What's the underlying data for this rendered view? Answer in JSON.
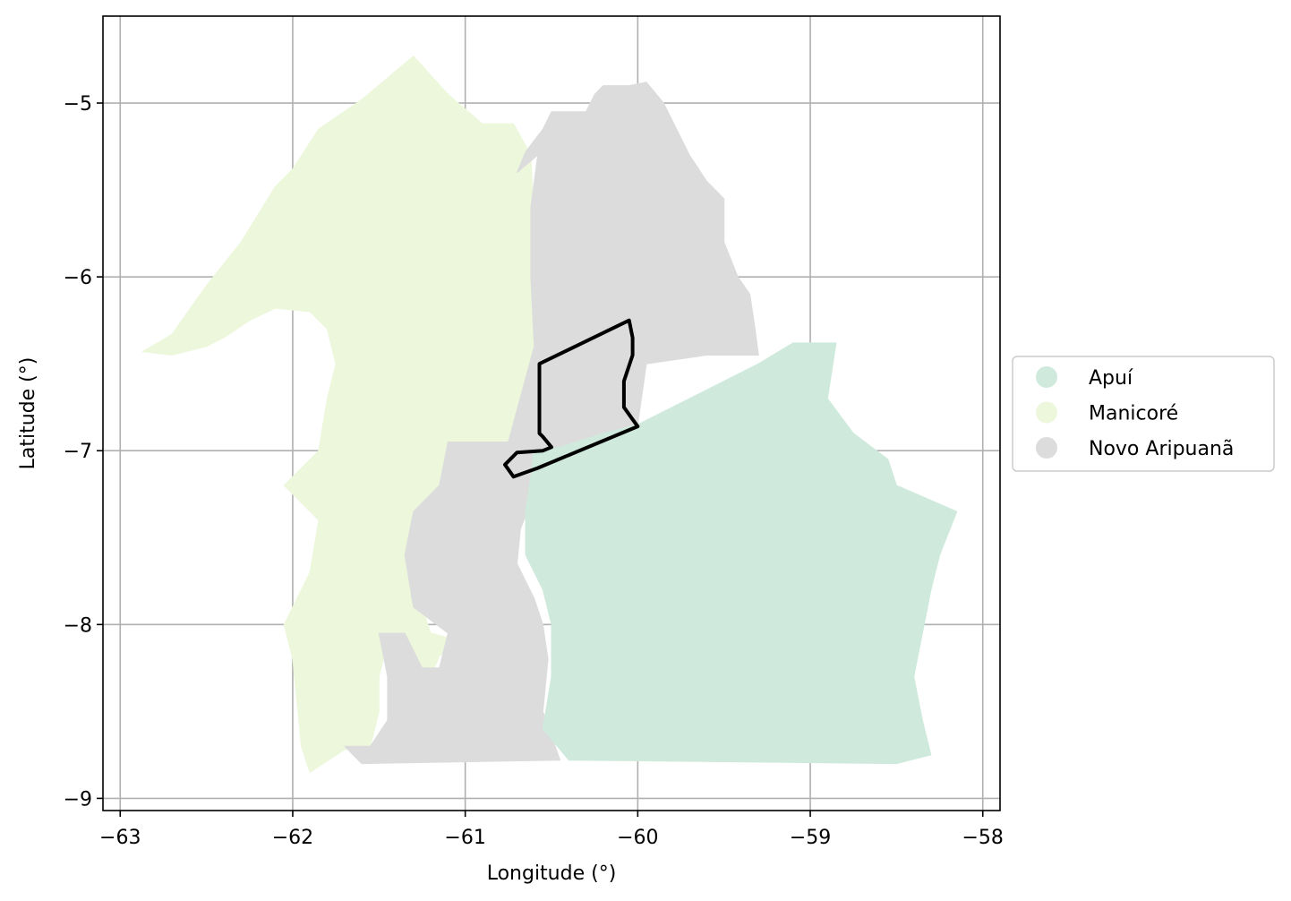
{
  "chart_data": {
    "type": "map",
    "xlabel": "Longitude (°)",
    "ylabel": "Latitude (°)",
    "xlim": [
      -63.1,
      -57.9
    ],
    "ylim": [
      -9.07,
      -4.5
    ],
    "x_ticks": [
      -63,
      -62,
      -61,
      -60,
      -59,
      -58
    ],
    "y_ticks": [
      -5,
      -6,
      -7,
      -8,
      -9
    ],
    "x_tick_labels": [
      "−63",
      "−62",
      "−61",
      "−60",
      "−59",
      "−58"
    ],
    "y_tick_labels": [
      "−5",
      "−6",
      "−7",
      "−8",
      "−9"
    ],
    "grid": true,
    "legend_position": "center-right",
    "legend": [
      {
        "name": "Apuí",
        "color": "#cfeadd"
      },
      {
        "name": "Manicoré",
        "color": "#ecf7dc"
      },
      {
        "name": "Novo Aripuanã",
        "color": "#dcdcdc"
      }
    ],
    "regions": [
      {
        "name": "Manicoré",
        "color": "#ecf7dc",
        "polygon": [
          [
            -62.87,
            -6.43
          ],
          [
            -62.7,
            -6.33
          ],
          [
            -62.5,
            -6.05
          ],
          [
            -62.3,
            -5.8
          ],
          [
            -62.1,
            -5.48
          ],
          [
            -62.0,
            -5.38
          ],
          [
            -61.85,
            -5.15
          ],
          [
            -61.6,
            -4.98
          ],
          [
            -61.3,
            -4.73
          ],
          [
            -61.1,
            -4.95
          ],
          [
            -60.9,
            -5.12
          ],
          [
            -60.72,
            -5.12
          ],
          [
            -60.62,
            -5.3
          ],
          [
            -60.6,
            -5.7
          ],
          [
            -60.6,
            -6.1
          ],
          [
            -60.57,
            -6.5
          ],
          [
            -60.55,
            -6.95
          ],
          [
            -60.6,
            -7.0
          ],
          [
            -60.75,
            -7.1
          ],
          [
            -60.7,
            -7.2
          ],
          [
            -60.65,
            -7.28
          ],
          [
            -60.9,
            -7.28
          ],
          [
            -60.98,
            -7.25
          ],
          [
            -60.98,
            -7.0
          ],
          [
            -61.1,
            -7.0
          ],
          [
            -61.1,
            -7.35
          ],
          [
            -61.2,
            -7.6
          ],
          [
            -61.25,
            -7.9
          ],
          [
            -61.2,
            -8.05
          ],
          [
            -61.0,
            -8.1
          ],
          [
            -61.15,
            -8.18
          ],
          [
            -61.2,
            -8.3
          ],
          [
            -61.35,
            -8.3
          ],
          [
            -61.45,
            -8.1
          ],
          [
            -61.5,
            -8.3
          ],
          [
            -61.5,
            -8.5
          ],
          [
            -61.55,
            -8.7
          ],
          [
            -61.7,
            -8.72
          ],
          [
            -61.9,
            -8.85
          ],
          [
            -61.95,
            -8.7
          ],
          [
            -62.0,
            -8.2
          ],
          [
            -62.05,
            -8.0
          ],
          [
            -61.9,
            -7.7
          ],
          [
            -61.85,
            -7.4
          ],
          [
            -62.05,
            -7.2
          ],
          [
            -61.85,
            -7.0
          ],
          [
            -61.8,
            -6.7
          ],
          [
            -61.75,
            -6.5
          ],
          [
            -61.8,
            -6.3
          ],
          [
            -61.9,
            -6.2
          ],
          [
            -62.1,
            -6.18
          ],
          [
            -62.25,
            -6.25
          ],
          [
            -62.4,
            -6.35
          ],
          [
            -62.5,
            -6.4
          ],
          [
            -62.7,
            -6.45
          ]
        ]
      },
      {
        "name": "Novo Aripuanã",
        "color": "#dcdcdc",
        "polygon": [
          [
            -60.7,
            -5.4
          ],
          [
            -60.65,
            -5.28
          ],
          [
            -60.55,
            -5.15
          ],
          [
            -60.5,
            -5.05
          ],
          [
            -60.3,
            -5.05
          ],
          [
            -60.25,
            -4.95
          ],
          [
            -60.2,
            -4.9
          ],
          [
            -60.05,
            -4.9
          ],
          [
            -59.95,
            -4.88
          ],
          [
            -59.85,
            -5.0
          ],
          [
            -59.7,
            -5.3
          ],
          [
            -59.6,
            -5.45
          ],
          [
            -59.5,
            -5.55
          ],
          [
            -59.5,
            -5.8
          ],
          [
            -59.42,
            -6.0
          ],
          [
            -59.35,
            -6.1
          ],
          [
            -59.32,
            -6.3
          ],
          [
            -59.3,
            -6.45
          ],
          [
            -59.6,
            -6.45
          ],
          [
            -59.95,
            -6.5
          ],
          [
            -60.0,
            -6.85
          ],
          [
            -60.2,
            -6.9
          ],
          [
            -60.45,
            -6.98
          ],
          [
            -60.52,
            -7.1
          ],
          [
            -60.6,
            -7.25
          ],
          [
            -60.68,
            -7.45
          ],
          [
            -60.7,
            -7.65
          ],
          [
            -60.6,
            -7.85
          ],
          [
            -60.55,
            -8.0
          ],
          [
            -60.52,
            -8.2
          ],
          [
            -60.55,
            -8.5
          ],
          [
            -60.45,
            -8.78
          ],
          [
            -61.6,
            -8.8
          ],
          [
            -61.7,
            -8.7
          ],
          [
            -61.55,
            -8.7
          ],
          [
            -61.45,
            -8.55
          ],
          [
            -61.45,
            -8.3
          ],
          [
            -61.5,
            -8.05
          ],
          [
            -61.35,
            -8.05
          ],
          [
            -61.25,
            -8.25
          ],
          [
            -61.15,
            -8.25
          ],
          [
            -61.1,
            -8.05
          ],
          [
            -61.3,
            -7.9
          ],
          [
            -61.35,
            -7.6
          ],
          [
            -61.3,
            -7.35
          ],
          [
            -61.15,
            -7.2
          ],
          [
            -61.1,
            -6.95
          ],
          [
            -60.75,
            -6.95
          ],
          [
            -60.6,
            -6.4
          ],
          [
            -60.62,
            -6.0
          ],
          [
            -60.62,
            -5.6
          ],
          [
            -60.58,
            -5.3
          ]
        ]
      },
      {
        "name": "Apuí",
        "color": "#cfeadd",
        "polygon": [
          [
            -60.0,
            -6.85
          ],
          [
            -59.7,
            -6.7
          ],
          [
            -59.3,
            -6.5
          ],
          [
            -59.1,
            -6.38
          ],
          [
            -58.85,
            -6.38
          ],
          [
            -58.9,
            -6.7
          ],
          [
            -58.75,
            -6.9
          ],
          [
            -58.55,
            -7.05
          ],
          [
            -58.5,
            -7.2
          ],
          [
            -58.15,
            -7.35
          ],
          [
            -58.25,
            -7.6
          ],
          [
            -58.3,
            -7.8
          ],
          [
            -58.35,
            -8.05
          ],
          [
            -58.4,
            -8.3
          ],
          [
            -58.35,
            -8.55
          ],
          [
            -58.3,
            -8.75
          ],
          [
            -58.5,
            -8.8
          ],
          [
            -60.4,
            -8.78
          ],
          [
            -60.55,
            -8.6
          ],
          [
            -60.5,
            -8.3
          ],
          [
            -60.5,
            -8.0
          ],
          [
            -60.55,
            -7.8
          ],
          [
            -60.65,
            -7.6
          ],
          [
            -60.65,
            -7.35
          ],
          [
            -60.62,
            -7.15
          ],
          [
            -60.6,
            -7.0
          ],
          [
            -60.45,
            -6.98
          ],
          [
            -60.2,
            -6.9
          ]
        ]
      }
    ],
    "outline": {
      "color": "#000000",
      "polygon": [
        [
          -60.57,
          -6.5
        ],
        [
          -60.05,
          -6.25
        ],
        [
          -60.03,
          -6.35
        ],
        [
          -60.03,
          -6.45
        ],
        [
          -60.08,
          -6.6
        ],
        [
          -60.08,
          -6.75
        ],
        [
          -60.03,
          -6.82
        ],
        [
          -60.0,
          -6.86
        ],
        [
          -60.58,
          -7.1
        ],
        [
          -60.72,
          -7.15
        ],
        [
          -60.77,
          -7.08
        ],
        [
          -60.7,
          -7.01
        ],
        [
          -60.55,
          -7.0
        ],
        [
          -60.5,
          -6.98
        ],
        [
          -60.55,
          -6.92
        ],
        [
          -60.57,
          -6.9
        ]
      ]
    }
  }
}
